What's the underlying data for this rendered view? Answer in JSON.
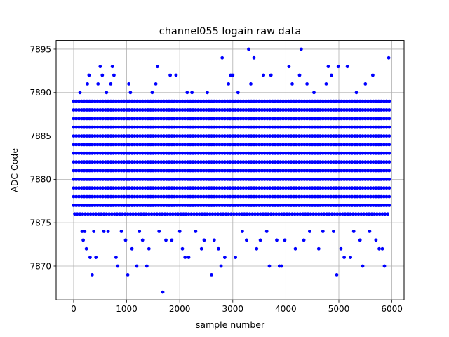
{
  "chart_data": {
    "type": "scatter",
    "title": "channel055 logain raw data",
    "xlabel": "sample number",
    "ylabel": "ADC Code",
    "xlim": [
      -330,
      6230
    ],
    "ylim": [
      7866.1,
      7896.0
    ],
    "xticks": [
      0,
      1000,
      2000,
      3000,
      4000,
      5000,
      6000
    ],
    "yticks": [
      7870,
      7875,
      7880,
      7885,
      7890,
      7895
    ],
    "grid": true,
    "marker_color": "#0000ff",
    "band_levels": [
      7876,
      7877,
      7878,
      7879,
      7880,
      7881,
      7882,
      7883,
      7884,
      7885,
      7886,
      7887,
      7888,
      7889
    ],
    "n_samples": 5950,
    "outliers": [
      {
        "x": 120,
        "y": 7890
      },
      {
        "x": 160,
        "y": 7874
      },
      {
        "x": 180,
        "y": 7873
      },
      {
        "x": 210,
        "y": 7874
      },
      {
        "x": 240,
        "y": 7872
      },
      {
        "x": 260,
        "y": 7891
      },
      {
        "x": 290,
        "y": 7892
      },
      {
        "x": 310,
        "y": 7871
      },
      {
        "x": 350,
        "y": 7869
      },
      {
        "x": 380,
        "y": 7874
      },
      {
        "x": 420,
        "y": 7871
      },
      {
        "x": 460,
        "y": 7891
      },
      {
        "x": 500,
        "y": 7893
      },
      {
        "x": 540,
        "y": 7892
      },
      {
        "x": 570,
        "y": 7874
      },
      {
        "x": 620,
        "y": 7890
      },
      {
        "x": 650,
        "y": 7874
      },
      {
        "x": 700,
        "y": 7891
      },
      {
        "x": 730,
        "y": 7893
      },
      {
        "x": 760,
        "y": 7892
      },
      {
        "x": 800,
        "y": 7871
      },
      {
        "x": 830,
        "y": 7870
      },
      {
        "x": 900,
        "y": 7874
      },
      {
        "x": 980,
        "y": 7873
      },
      {
        "x": 1020,
        "y": 7869
      },
      {
        "x": 1040,
        "y": 7891
      },
      {
        "x": 1070,
        "y": 7890
      },
      {
        "x": 1100,
        "y": 7872
      },
      {
        "x": 1190,
        "y": 7870
      },
      {
        "x": 1240,
        "y": 7874
      },
      {
        "x": 1300,
        "y": 7873
      },
      {
        "x": 1380,
        "y": 7870
      },
      {
        "x": 1420,
        "y": 7872
      },
      {
        "x": 1480,
        "y": 7890
      },
      {
        "x": 1550,
        "y": 7891
      },
      {
        "x": 1580,
        "y": 7893
      },
      {
        "x": 1610,
        "y": 7874
      },
      {
        "x": 1680,
        "y": 7867
      },
      {
        "x": 1740,
        "y": 7873
      },
      {
        "x": 1820,
        "y": 7892
      },
      {
        "x": 1850,
        "y": 7873
      },
      {
        "x": 1930,
        "y": 7892
      },
      {
        "x": 2000,
        "y": 7874
      },
      {
        "x": 2050,
        "y": 7872
      },
      {
        "x": 2100,
        "y": 7871
      },
      {
        "x": 2140,
        "y": 7890
      },
      {
        "x": 2170,
        "y": 7871
      },
      {
        "x": 2230,
        "y": 7890
      },
      {
        "x": 2300,
        "y": 7874
      },
      {
        "x": 2410,
        "y": 7872
      },
      {
        "x": 2460,
        "y": 7873
      },
      {
        "x": 2520,
        "y": 7890
      },
      {
        "x": 2600,
        "y": 7869
      },
      {
        "x": 2650,
        "y": 7873
      },
      {
        "x": 2730,
        "y": 7872
      },
      {
        "x": 2780,
        "y": 7870
      },
      {
        "x": 2800,
        "y": 7894
      },
      {
        "x": 2850,
        "y": 7871
      },
      {
        "x": 2920,
        "y": 7891
      },
      {
        "x": 2960,
        "y": 7892
      },
      {
        "x": 3000,
        "y": 7892
      },
      {
        "x": 3050,
        "y": 7871
      },
      {
        "x": 3100,
        "y": 7890
      },
      {
        "x": 3180,
        "y": 7874
      },
      {
        "x": 3260,
        "y": 7873
      },
      {
        "x": 3300,
        "y": 7895
      },
      {
        "x": 3340,
        "y": 7891
      },
      {
        "x": 3400,
        "y": 7894
      },
      {
        "x": 3450,
        "y": 7872
      },
      {
        "x": 3520,
        "y": 7873
      },
      {
        "x": 3580,
        "y": 7892
      },
      {
        "x": 3640,
        "y": 7874
      },
      {
        "x": 3690,
        "y": 7870
      },
      {
        "x": 3720,
        "y": 7892
      },
      {
        "x": 3830,
        "y": 7873
      },
      {
        "x": 3880,
        "y": 7870
      },
      {
        "x": 3920,
        "y": 7870
      },
      {
        "x": 3980,
        "y": 7873
      },
      {
        "x": 4060,
        "y": 7893
      },
      {
        "x": 4120,
        "y": 7891
      },
      {
        "x": 4180,
        "y": 7872
      },
      {
        "x": 4260,
        "y": 7892
      },
      {
        "x": 4290,
        "y": 7895
      },
      {
        "x": 4340,
        "y": 7873
      },
      {
        "x": 4400,
        "y": 7891
      },
      {
        "x": 4450,
        "y": 7874
      },
      {
        "x": 4530,
        "y": 7890
      },
      {
        "x": 4620,
        "y": 7872
      },
      {
        "x": 4700,
        "y": 7874
      },
      {
        "x": 4760,
        "y": 7891
      },
      {
        "x": 4800,
        "y": 7893
      },
      {
        "x": 4860,
        "y": 7892
      },
      {
        "x": 4900,
        "y": 7874
      },
      {
        "x": 4960,
        "y": 7869
      },
      {
        "x": 4990,
        "y": 7893
      },
      {
        "x": 5040,
        "y": 7872
      },
      {
        "x": 5100,
        "y": 7871
      },
      {
        "x": 5160,
        "y": 7893
      },
      {
        "x": 5220,
        "y": 7871
      },
      {
        "x": 5280,
        "y": 7874
      },
      {
        "x": 5330,
        "y": 7890
      },
      {
        "x": 5400,
        "y": 7873
      },
      {
        "x": 5450,
        "y": 7870
      },
      {
        "x": 5500,
        "y": 7891
      },
      {
        "x": 5580,
        "y": 7874
      },
      {
        "x": 5640,
        "y": 7892
      },
      {
        "x": 5700,
        "y": 7873
      },
      {
        "x": 5760,
        "y": 7872
      },
      {
        "x": 5820,
        "y": 7872
      },
      {
        "x": 5860,
        "y": 7870
      },
      {
        "x": 5900,
        "y": 7889
      },
      {
        "x": 5940,
        "y": 7894
      }
    ]
  }
}
